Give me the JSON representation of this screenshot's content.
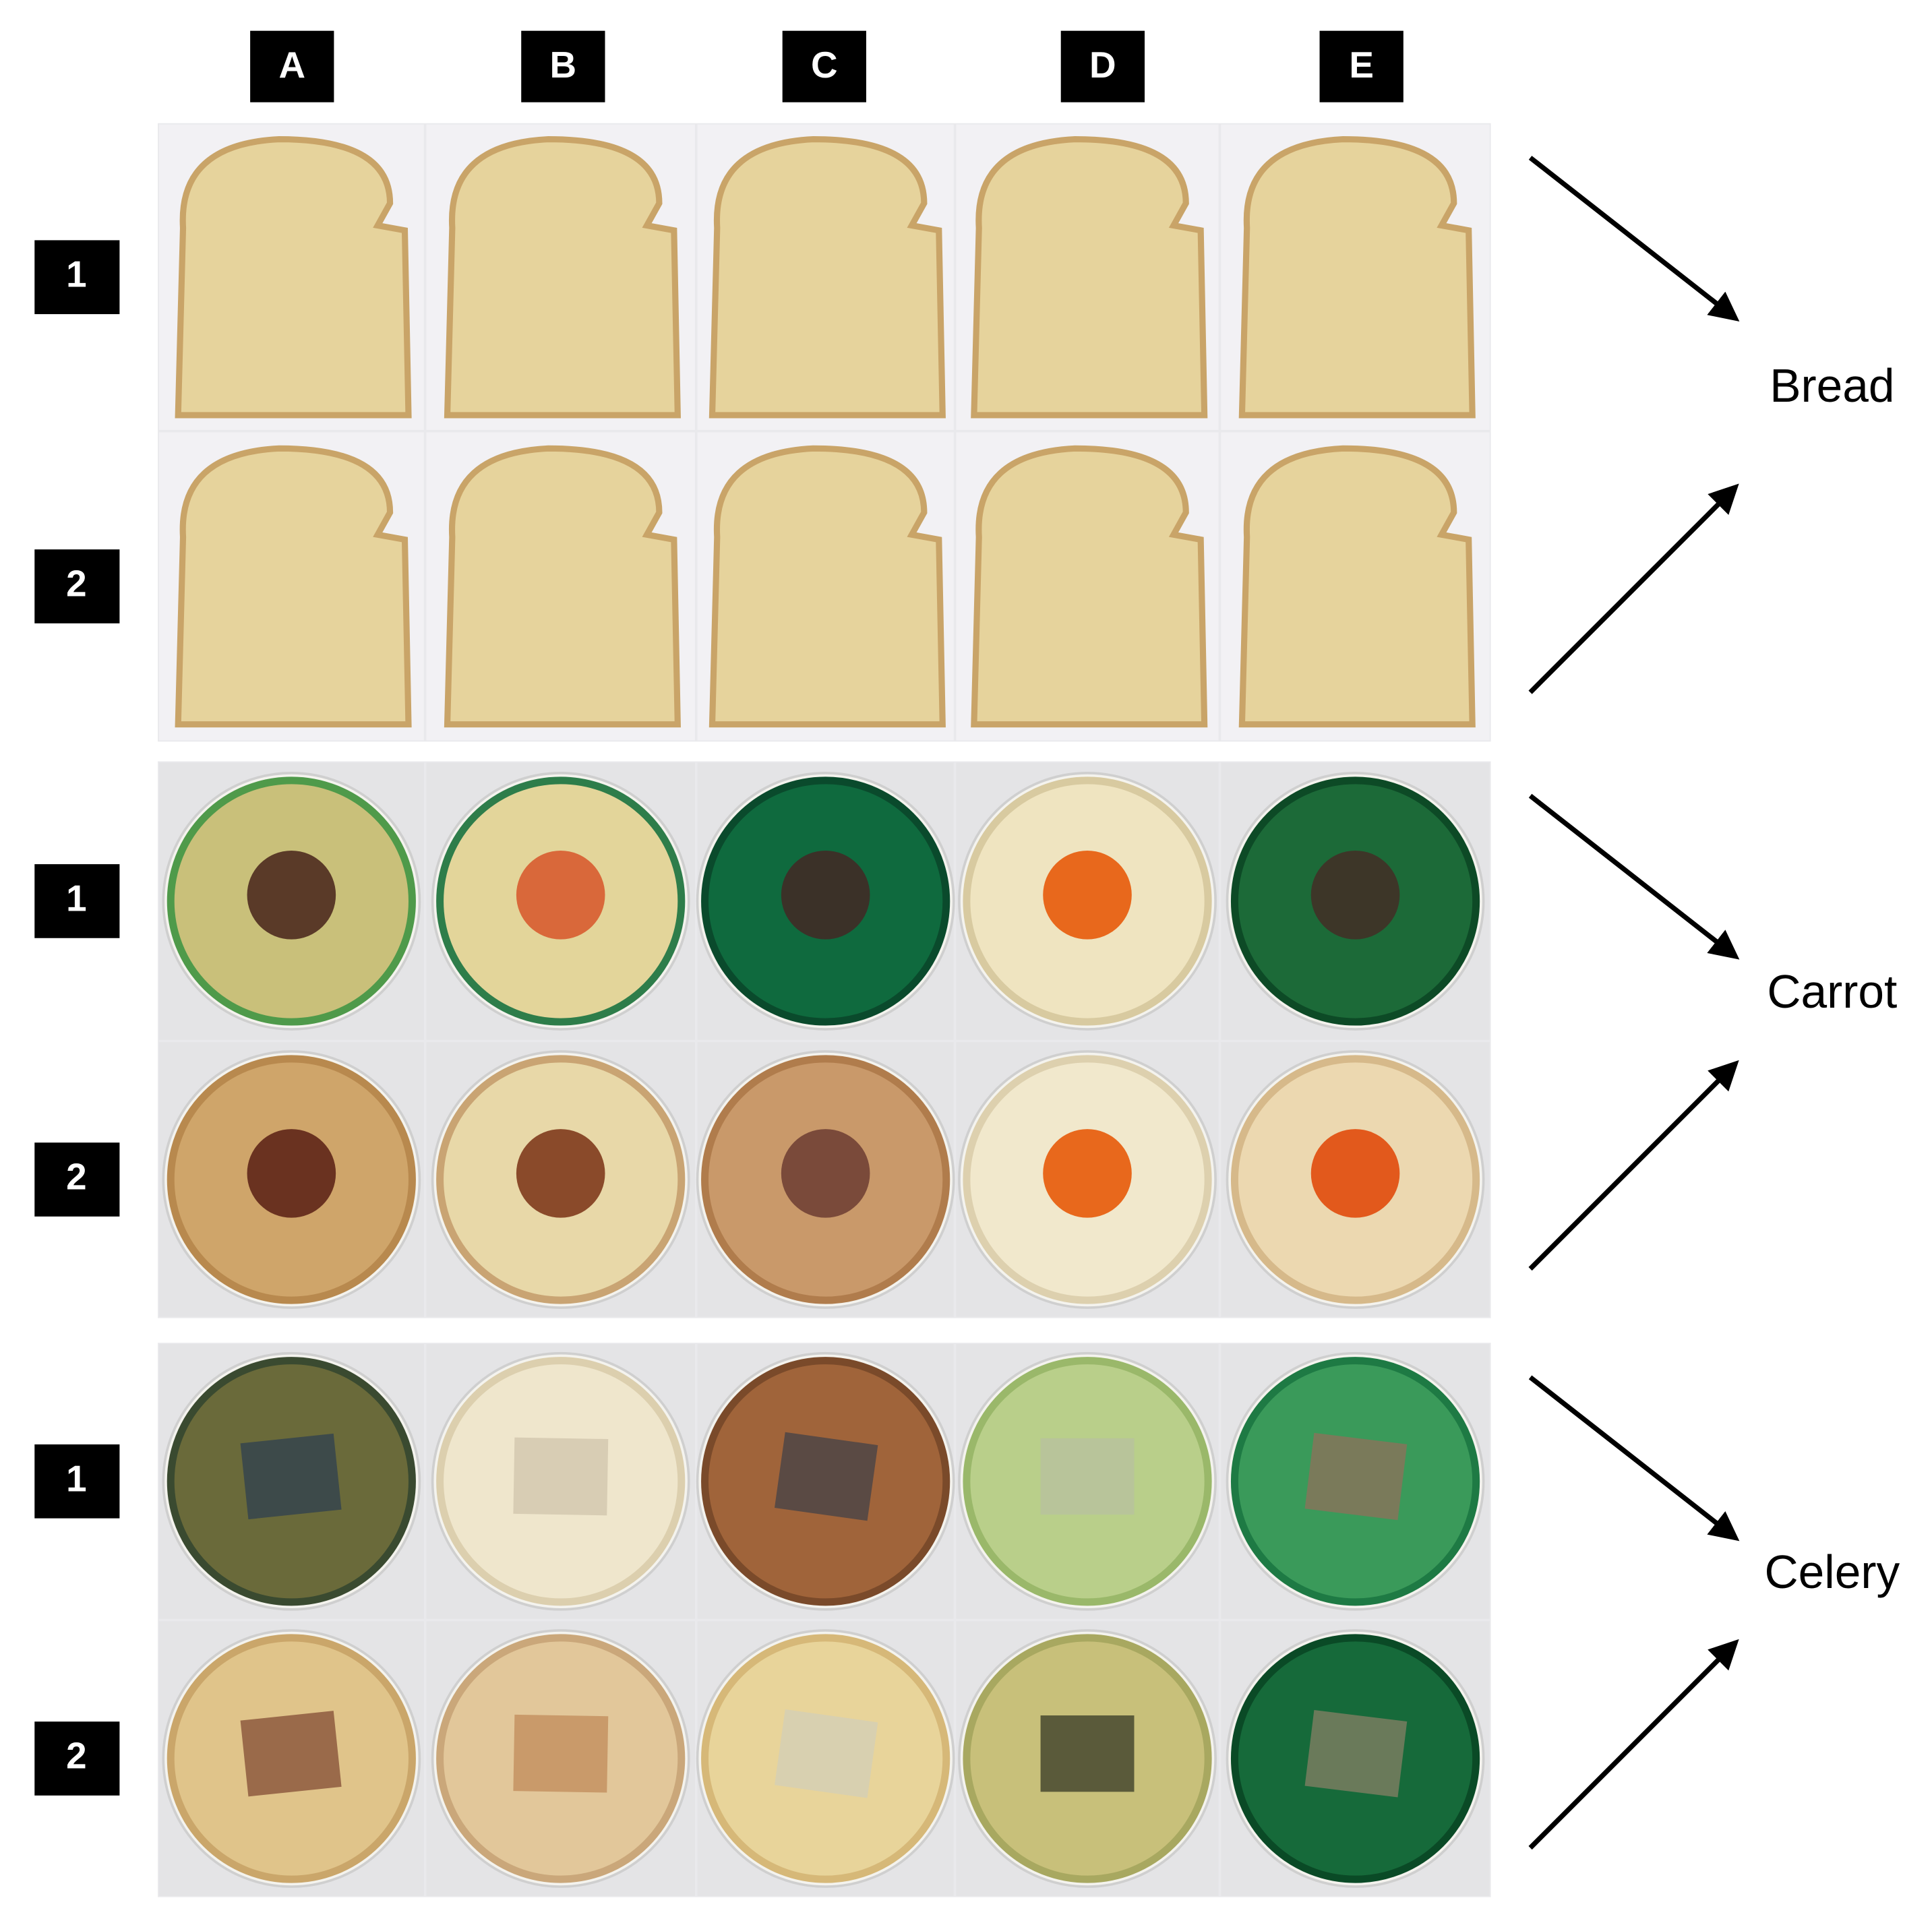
{
  "columns": [
    "A",
    "B",
    "C",
    "D",
    "E"
  ],
  "groups": [
    {
      "label": "Bread",
      "rows": [
        "1",
        "2"
      ]
    },
    {
      "label": "Carrot",
      "rows": [
        "1",
        "2"
      ]
    },
    {
      "label": "Celery",
      "rows": [
        "1",
        "2"
      ]
    }
  ]
}
